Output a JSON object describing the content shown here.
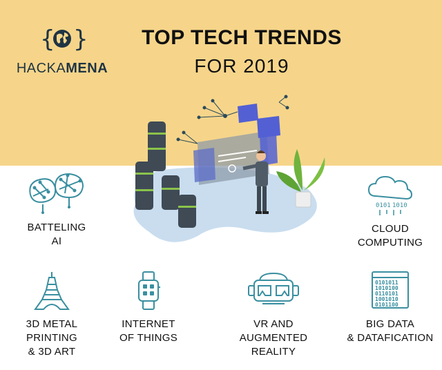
{
  "brand": {
    "logo_glyph": "{ }",
    "name_light": "HACKA",
    "name_bold": "MENA"
  },
  "header": {
    "title": "TOP TECH TRENDS",
    "subtitle": "FOR 2019"
  },
  "colors": {
    "header_background": "#f6d58a",
    "icon_teal": "#3a8fa0",
    "text": "#111111"
  },
  "trends": [
    {
      "label_line1": "BATTELING",
      "label_line2": "AI",
      "label_line3": "",
      "icon": "brain-network-icon"
    },
    {
      "label_line1": "CLOUD",
      "label_line2": "COMPUTING",
      "label_line3": "",
      "icon": "cloud-data-icon"
    },
    {
      "label_line1": "3D METAL",
      "label_line2": "PRINTING",
      "label_line3": "& 3D ART",
      "icon": "eiffel-tower-icon"
    },
    {
      "label_line1": "INTERNET",
      "label_line2": "OF THINGS",
      "label_line3": "",
      "icon": "smartwatch-icon"
    },
    {
      "label_line1": "VR AND",
      "label_line2": "AUGMENTED",
      "label_line3": "REALITY",
      "icon": "vr-headset-icon"
    },
    {
      "label_line1": "BIG DATA",
      "label_line2": "& DATAFICATION",
      "label_line3": "",
      "icon": "binary-data-icon"
    }
  ],
  "hero": {
    "illustration": "businessman-with-holographic-dashboard-illustration",
    "cloud_binary_1": "0101",
    "cloud_binary_2": "1010",
    "data_binary_1": "0101011",
    "data_binary_2": "1010100",
    "data_binary_3": "0110101",
    "data_binary_4": "1001010",
    "data_binary_5": "0101100"
  }
}
